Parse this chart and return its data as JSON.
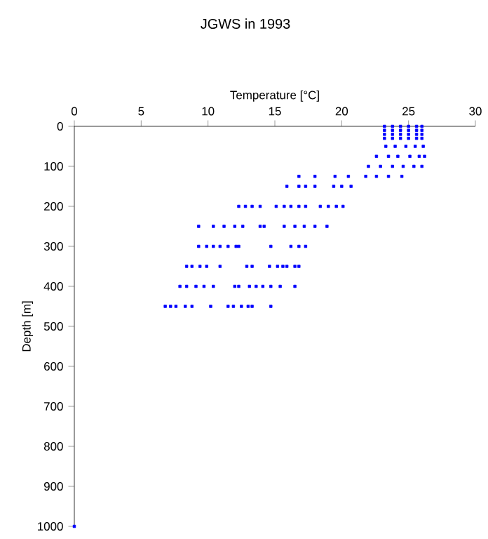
{
  "chart_data": {
    "type": "scatter",
    "title": "JGWS in 1993",
    "xlabel": "Temperature [°C]",
    "ylabel": "Depth [m]",
    "x": [
      23.2,
      23.8,
      24.4,
      25.0,
      25.6,
      26.0,
      23.2,
      23.8,
      24.4,
      25.0,
      25.6,
      26.0,
      23.2,
      23.8,
      24.4,
      25.0,
      25.6,
      26.0,
      23.2,
      23.8,
      24.4,
      25.0,
      25.6,
      26.0,
      23.3,
      24.0,
      24.8,
      25.5,
      26.1,
      22.6,
      23.5,
      24.2,
      25.1,
      25.8,
      26.2,
      22.0,
      22.9,
      23.8,
      24.6,
      25.4,
      26.0,
      16.8,
      18.0,
      19.5,
      20.5,
      21.8,
      22.6,
      23.5,
      24.5,
      15.9,
      16.8,
      17.3,
      18.0,
      19.4,
      20.0,
      20.7,
      12.3,
      12.8,
      13.3,
      13.9,
      15.1,
      15.7,
      16.2,
      16.8,
      17.3,
      18.4,
      19.0,
      19.6,
      20.1,
      9.3,
      10.4,
      11.2,
      12.0,
      12.6,
      13.9,
      14.2,
      15.7,
      16.5,
      17.2,
      18.0,
      18.9,
      9.3,
      9.9,
      10.4,
      10.9,
      11.5,
      12.1,
      12.3,
      14.7,
      16.2,
      16.8,
      17.3,
      8.4,
      8.8,
      9.4,
      9.9,
      10.9,
      12.9,
      13.3,
      14.6,
      15.2,
      15.6,
      15.9,
      16.5,
      16.8,
      7.9,
      8.4,
      9.1,
      9.7,
      10.4,
      12.0,
      12.3,
      13.1,
      13.6,
      14.1,
      14.7,
      15.4,
      16.5,
      6.8,
      7.2,
      7.6,
      8.3,
      8.8,
      10.2,
      11.5,
      11.9,
      12.5,
      13.0,
      13.3,
      14.7,
      0
    ],
    "values": [
      0,
      0,
      0,
      0,
      0,
      0,
      10,
      10,
      10,
      10,
      10,
      10,
      20,
      20,
      20,
      20,
      20,
      20,
      30,
      30,
      30,
      30,
      30,
      30,
      50,
      50,
      50,
      50,
      50,
      75,
      75,
      75,
      75,
      75,
      75,
      100,
      100,
      100,
      100,
      100,
      100,
      125,
      125,
      125,
      125,
      125,
      125,
      125,
      125,
      150,
      150,
      150,
      150,
      150,
      150,
      150,
      200,
      200,
      200,
      200,
      200,
      200,
      200,
      200,
      200,
      200,
      200,
      200,
      200,
      250,
      250,
      250,
      250,
      250,
      250,
      250,
      250,
      250,
      250,
      250,
      250,
      300,
      300,
      300,
      300,
      300,
      300,
      300,
      300,
      300,
      300,
      300,
      350,
      350,
      350,
      350,
      350,
      350,
      350,
      350,
      350,
      350,
      350,
      350,
      350,
      400,
      400,
      400,
      400,
      400,
      400,
      400,
      400,
      400,
      400,
      400,
      400,
      400,
      450,
      450,
      450,
      450,
      450,
      450,
      450,
      450,
      450,
      450,
      450,
      450,
      1000
    ],
    "color": "#0000ff",
    "marker": "square",
    "grid": false,
    "xlim": [
      0,
      30
    ],
    "xticks": [
      0,
      5,
      10,
      15,
      20,
      25,
      30
    ],
    "ylim": [
      1000,
      0
    ],
    "yticks": [
      0,
      100,
      200,
      300,
      400,
      500,
      600,
      700,
      800,
      900,
      1000
    ]
  }
}
